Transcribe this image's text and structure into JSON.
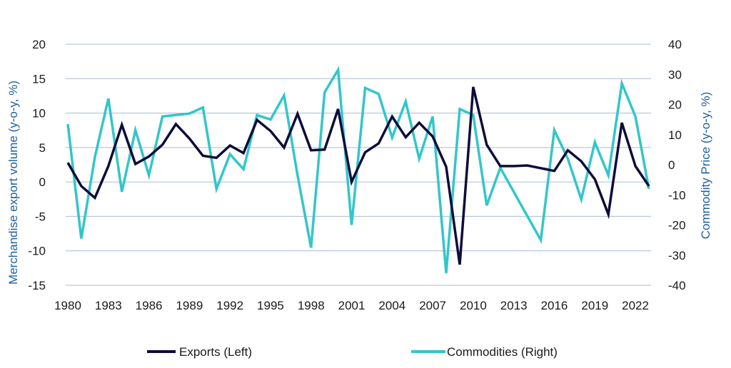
{
  "chart_data": {
    "type": "line",
    "ylabel_left": "Merchandise export volume (y-o-y, %)",
    "ylabel_right": "Commodity Price (y-o-y, %)",
    "ylim_left": [
      -15,
      20
    ],
    "ylim_right": [
      -40,
      40
    ],
    "yticks_left": [
      -15,
      -10,
      -5,
      0,
      5,
      10,
      15,
      20
    ],
    "yticks_right": [
      -40,
      -30,
      -20,
      -10,
      0,
      10,
      20,
      30,
      40
    ],
    "x_tick_labels": [
      "1980",
      "1983",
      "1986",
      "1989",
      "1992",
      "1995",
      "1998",
      "2001",
      "2004",
      "2007",
      "2010",
      "2013",
      "2016",
      "2019",
      "2022"
    ],
    "x": [
      1980,
      1981,
      1982,
      1983,
      1984,
      1985,
      1986,
      1987,
      1988,
      1989,
      1990,
      1991,
      1992,
      1993,
      1994,
      1995,
      1996,
      1997,
      1998,
      1999,
      2000,
      2001,
      2002,
      2003,
      2004,
      2005,
      2006,
      2007,
      2008,
      2009,
      2010,
      2011,
      2012,
      2013,
      2014,
      2015,
      2016,
      2017,
      2018,
      2019,
      2020,
      2021,
      2022,
      2023
    ],
    "grid": true,
    "legend_position": "bottom",
    "series": [
      {
        "name": "Exports (Left)",
        "axis": "left",
        "color": "#0d0c3a",
        "values": [
          2.8,
          -0.6,
          -2.3,
          2.3,
          8.3,
          2.6,
          3.7,
          5.4,
          8.4,
          6.3,
          3.8,
          3.5,
          5.3,
          4.2,
          9.0,
          7.4,
          5.0,
          9.9,
          4.6,
          4.7,
          10.6,
          0.0,
          4.3,
          5.6,
          9.5,
          6.5,
          8.6,
          6.6,
          2.2,
          -12.0,
          13.8,
          5.4,
          2.3,
          2.3,
          2.4,
          2.0,
          1.6,
          4.6,
          3.0,
          0.4,
          -4.7,
          8.6,
          2.3,
          -0.6
        ]
      },
      {
        "name": "Commodities (Right)",
        "axis": "right",
        "color": "#33c6c9",
        "values": [
          13.5,
          -24.5,
          2.5,
          22.0,
          -9.0,
          11.5,
          -3.5,
          16.0,
          16.5,
          17.0,
          19.0,
          -8.0,
          3.5,
          -1.5,
          16.5,
          15.0,
          23.0,
          -3.5,
          -27.5,
          24.0,
          31.5,
          -20.0,
          25.5,
          23.5,
          9.0,
          21.0,
          2.0,
          16.0,
          -36.0,
          18.5,
          16.5,
          -13.5,
          -1.0,
          -9.0,
          -17.0,
          -25.0,
          11.5,
          2.0,
          -11.5,
          7.5,
          -3.5,
          27.0,
          16.0,
          -8.0
        ]
      }
    ]
  }
}
